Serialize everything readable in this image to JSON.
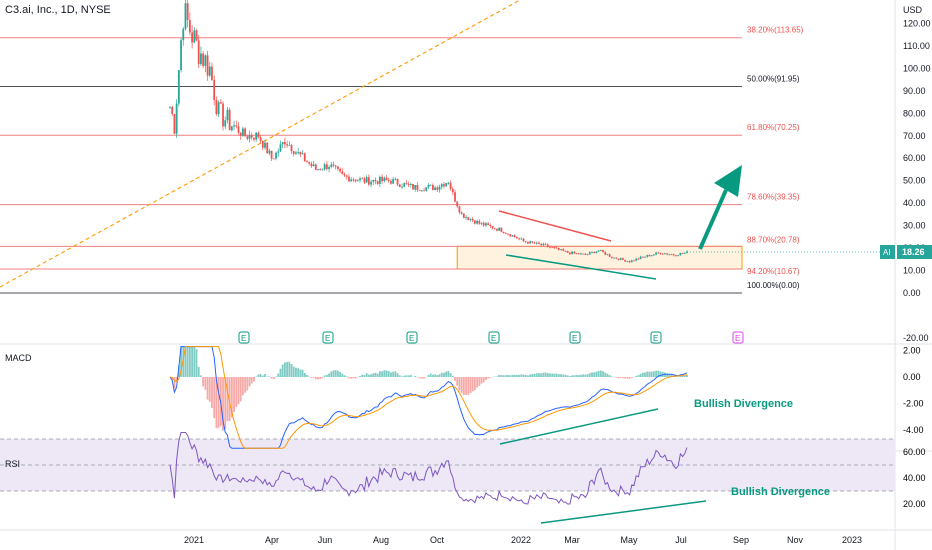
{
  "header": {
    "title": "C3.ai, Inc., 1D, NYSE",
    "currency": "USD"
  },
  "colors": {
    "fib_line": "#f08080",
    "fib_text": "#ef5350",
    "fib_black": "#131722",
    "up": "#26a69a",
    "down": "#ef5350",
    "annotation": "#089981",
    "macd_line": "#2962ff",
    "signal_line": "#ff9800",
    "rsi_line": "#7e57c2",
    "rsi_band": "#ede7f6",
    "zone_fill": "#fff3e0",
    "zone_border": "#ff9800"
  },
  "chart_data": [
    {
      "type": "candlestick",
      "title": "C3.ai, Inc., 1D, NYSE",
      "ylabel": "USD",
      "x_ticks": [
        "2021",
        "Apr",
        "Jun",
        "Aug",
        "Oct",
        "2022",
        "Mar",
        "May",
        "Jul",
        "Sep",
        "Nov",
        "2023"
      ],
      "y_ticks": [
        "-20.00",
        "0.00",
        "10.00",
        "20.00",
        "30.00",
        "40.00",
        "50.00",
        "60.00",
        "70.00",
        "80.00",
        "90.00",
        "100.00",
        "110.00",
        "120.00"
      ],
      "ylim": [
        -24,
        125
      ],
      "price_path": [
        [
          0,
          83
        ],
        [
          2,
          75
        ],
        [
          6,
          125
        ],
        [
          12,
          110
        ],
        [
          18,
          100
        ],
        [
          22,
          80
        ],
        [
          28,
          75
        ],
        [
          34,
          70
        ],
        [
          40,
          70
        ],
        [
          46,
          60
        ],
        [
          48,
          62
        ],
        [
          52,
          68
        ],
        [
          58,
          62
        ],
        [
          66,
          55
        ],
        [
          72,
          57
        ],
        [
          78,
          52
        ],
        [
          88,
          50
        ],
        [
          100,
          50
        ],
        [
          110,
          47
        ],
        [
          120,
          47
        ],
        [
          126,
          50
        ],
        [
          128,
          44
        ],
        [
          132,
          35
        ],
        [
          140,
          31
        ],
        [
          150,
          28
        ],
        [
          160,
          23
        ],
        [
          170,
          21
        ],
        [
          180,
          18
        ],
        [
          188,
          17
        ],
        [
          194,
          19
        ],
        [
          200,
          16
        ],
        [
          208,
          14
        ],
        [
          214,
          16
        ],
        [
          222,
          18
        ],
        [
          228,
          17
        ],
        [
          234,
          18
        ]
      ],
      "last_price": {
        "symbol": "AI",
        "value": "18.26"
      },
      "fib_levels": [
        {
          "label": "38.20%(113.65)",
          "value": 113.65
        },
        {
          "label": "50.00%(91.95)",
          "value": 91.95
        },
        {
          "label": "61.80%(70.25)",
          "value": 70.25
        },
        {
          "label": "78.60%(39.35)",
          "value": 39.35
        },
        {
          "label": "88.70%(20.78)",
          "value": 20.78
        },
        {
          "label": "94.20%(10.67)",
          "value": 10.67
        },
        {
          "label": "100.00%(0.00)",
          "value": 0.0
        }
      ],
      "earnings_markers": [
        "E",
        "E",
        "E",
        "E",
        "E",
        "E",
        "E"
      ]
    },
    {
      "type": "line",
      "title": "MACD",
      "y_ticks": [
        "2.00",
        "0.00",
        "-2.00",
        "-4.00"
      ],
      "ylim": [
        -5.6,
        2.4
      ],
      "annotation": "Bullish Divergence"
    },
    {
      "type": "line",
      "title": "RSI",
      "y_ticks": [
        "60.00",
        "40.00",
        "20.00"
      ],
      "ylim": [
        16,
        78
      ],
      "bands": [
        70,
        50,
        30
      ],
      "annotation": "Bullish Divergence"
    }
  ]
}
